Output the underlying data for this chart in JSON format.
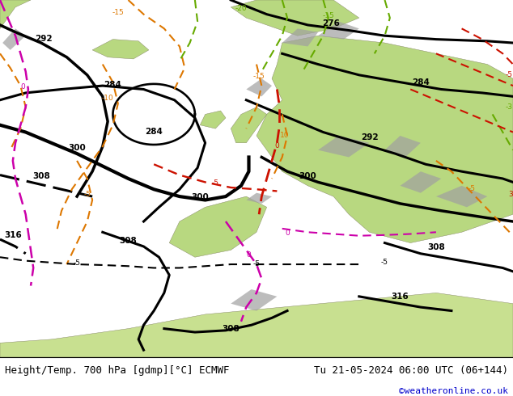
{
  "title_left": "Height/Temp. 700 hPa [gdmp][°C] ECMWF",
  "title_right": "Tu 21-05-2024 06:00 UTC (06+144)",
  "credit": "©weatheronline.co.uk",
  "credit_color": "#0000cc",
  "ocean_color": "#d8d8d8",
  "land_color": "#b8d8a0",
  "land_color2": "#c8e0a8",
  "gray_terrain": "#a8a8a8",
  "bottom_bar_color": "#ffffff",
  "title_fontsize": 9.0,
  "credit_fontsize": 8,
  "fig_width": 6.34,
  "fig_height": 4.9,
  "dpi": 100,
  "black_lw": 2.2,
  "thick_lw": 3.0,
  "temp_lw": 1.5
}
